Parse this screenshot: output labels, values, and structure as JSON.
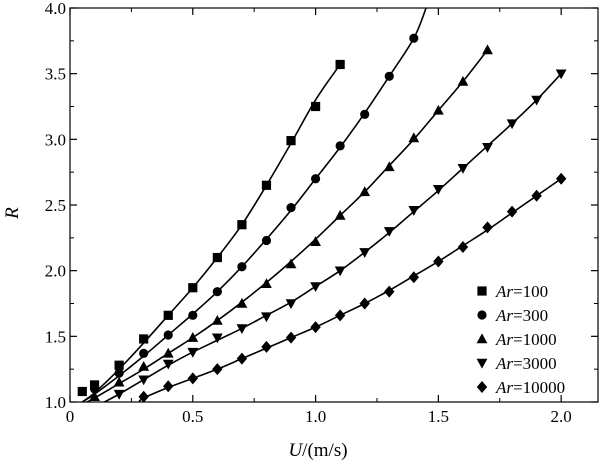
{
  "chart_data": {
    "type": "line",
    "title": "",
    "xlabel": "U/(m/s)",
    "xlabel_var": "U",
    "xlabel_unit": "/(m/s)",
    "ylabel": "R",
    "xlim": [
      0,
      2.15
    ],
    "ylim": [
      1.0,
      4.0
    ],
    "xticks": [
      0,
      0.5,
      1.0,
      1.5,
      2.0
    ],
    "xtick_labels": [
      "0",
      "0.5",
      "1.0",
      "1.5",
      "2.0"
    ],
    "yticks": [
      1.0,
      1.5,
      2.0,
      2.5,
      3.0,
      3.5,
      4.0
    ],
    "ytick_labels": [
      "1.0",
      "1.5",
      "2.0",
      "2.5",
      "3.0",
      "3.5",
      "4.0"
    ],
    "grid": false,
    "legend_position": "bottom-right",
    "series": [
      {
        "name": "Ar=100",
        "legend_var": "Ar",
        "legend_value": "=100",
        "marker": "square",
        "x": [
          0.05,
          0.1,
          0.2,
          0.3,
          0.4,
          0.5,
          0.6,
          0.7,
          0.8,
          0.9,
          1.0,
          1.1
        ],
        "y": [
          1.08,
          1.13,
          1.28,
          1.48,
          1.66,
          1.87,
          2.1,
          2.35,
          2.65,
          2.99,
          3.25,
          3.57
        ],
        "curve_x": [
          0.05,
          0.1,
          0.2,
          0.3,
          0.4,
          0.5,
          0.6,
          0.7,
          0.8,
          0.9,
          1.0,
          1.1
        ],
        "curve_y": [
          1.0,
          1.07,
          1.25,
          1.45,
          1.66,
          1.87,
          2.1,
          2.35,
          2.65,
          2.97,
          3.3,
          3.57
        ]
      },
      {
        "name": "Ar=300",
        "legend_var": "Ar",
        "legend_value": "=300",
        "marker": "circle",
        "x": [
          0.1,
          0.2,
          0.3,
          0.4,
          0.5,
          0.6,
          0.7,
          0.8,
          0.9,
          1.0,
          1.1,
          1.2,
          1.3,
          1.4
        ],
        "y": [
          1.1,
          1.22,
          1.37,
          1.51,
          1.66,
          1.84,
          2.03,
          2.23,
          2.48,
          2.7,
          2.95,
          3.19,
          3.48,
          3.77
        ],
        "curve_x": [
          0.05,
          0.1,
          0.2,
          0.3,
          0.4,
          0.5,
          0.6,
          0.7,
          0.8,
          0.9,
          1.0,
          1.1,
          1.2,
          1.3,
          1.4,
          1.45
        ],
        "curve_y": [
          1.0,
          1.06,
          1.2,
          1.35,
          1.51,
          1.67,
          1.84,
          2.03,
          2.24,
          2.46,
          2.7,
          2.94,
          3.2,
          3.48,
          3.77,
          4.0
        ]
      },
      {
        "name": "Ar=1000",
        "legend_var": "Ar",
        "legend_value": "=1000",
        "marker": "triangle-up",
        "x": [
          0.1,
          0.2,
          0.3,
          0.4,
          0.5,
          0.6,
          0.7,
          0.8,
          0.9,
          1.0,
          1.1,
          1.2,
          1.3,
          1.4,
          1.5,
          1.6,
          1.7
        ],
        "y": [
          1.04,
          1.15,
          1.27,
          1.37,
          1.49,
          1.62,
          1.75,
          1.9,
          2.05,
          2.22,
          2.42,
          2.6,
          2.79,
          3.01,
          3.22,
          3.44,
          3.68
        ],
        "curve_x": [
          0.07,
          0.1,
          0.2,
          0.3,
          0.4,
          0.5,
          0.6,
          0.7,
          0.8,
          0.9,
          1.0,
          1.1,
          1.2,
          1.3,
          1.4,
          1.5,
          1.6,
          1.7
        ],
        "curve_y": [
          1.0,
          1.03,
          1.14,
          1.25,
          1.37,
          1.49,
          1.62,
          1.76,
          1.91,
          2.07,
          2.24,
          2.42,
          2.6,
          2.8,
          3.0,
          3.22,
          3.44,
          3.68
        ]
      },
      {
        "name": "Ar=3000",
        "legend_var": "Ar",
        "legend_value": "=3000",
        "marker": "triangle-down",
        "x": [
          0.2,
          0.3,
          0.4,
          0.5,
          0.6,
          0.7,
          0.8,
          0.9,
          1.0,
          1.1,
          1.2,
          1.3,
          1.4,
          1.5,
          1.6,
          1.7,
          1.8,
          1.9,
          2.0
        ],
        "y": [
          1.06,
          1.17,
          1.29,
          1.38,
          1.49,
          1.56,
          1.65,
          1.75,
          1.88,
          2.0,
          2.14,
          2.3,
          2.46,
          2.62,
          2.78,
          2.94,
          3.12,
          3.3,
          3.5
        ],
        "curve_x": [
          0.14,
          0.2,
          0.3,
          0.4,
          0.5,
          0.6,
          0.7,
          0.8,
          0.9,
          1.0,
          1.1,
          1.2,
          1.3,
          1.4,
          1.5,
          1.6,
          1.7,
          1.8,
          1.9,
          2.0
        ],
        "curve_y": [
          1.0,
          1.06,
          1.17,
          1.28,
          1.38,
          1.47,
          1.56,
          1.66,
          1.76,
          1.88,
          2.0,
          2.14,
          2.29,
          2.45,
          2.61,
          2.78,
          2.95,
          3.12,
          3.3,
          3.5
        ]
      },
      {
        "name": "Ar=10000",
        "legend_var": "Ar",
        "legend_value": "=10000",
        "marker": "diamond",
        "x": [
          0.3,
          0.4,
          0.5,
          0.6,
          0.7,
          0.8,
          0.9,
          1.0,
          1.1,
          1.2,
          1.3,
          1.4,
          1.5,
          1.6,
          1.7,
          1.8,
          1.9,
          2.0
        ],
        "y": [
          1.04,
          1.12,
          1.18,
          1.25,
          1.33,
          1.42,
          1.49,
          1.57,
          1.66,
          1.75,
          1.84,
          1.95,
          2.07,
          2.18,
          2.33,
          2.45,
          2.57,
          2.7
        ],
        "curve_x": [
          0.28,
          0.3,
          0.4,
          0.5,
          0.6,
          0.7,
          0.8,
          0.9,
          1.0,
          1.1,
          1.2,
          1.3,
          1.4,
          1.5,
          1.6,
          1.7,
          1.8,
          1.9,
          2.0
        ],
        "curve_y": [
          1.0,
          1.03,
          1.11,
          1.18,
          1.25,
          1.33,
          1.41,
          1.49,
          1.57,
          1.66,
          1.75,
          1.85,
          1.96,
          2.07,
          2.19,
          2.31,
          2.44,
          2.57,
          2.7
        ]
      }
    ]
  }
}
